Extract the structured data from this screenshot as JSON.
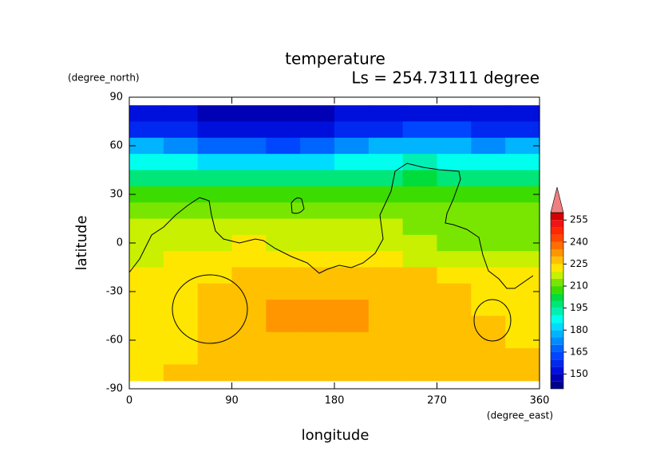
{
  "chart_data": {
    "type": "contour",
    "title": "temperature",
    "subtitle": "Ls = 254.73111 degree",
    "x_label": "longitude",
    "x_units": "(degree_east)",
    "y_label": "latitude",
    "y_units": "(degree_north)",
    "xlim": [
      0,
      360
    ],
    "xticks": [
      0,
      90,
      180,
      270,
      360
    ],
    "ylim": [
      -90,
      90
    ],
    "yticks": [
      90,
      60,
      30,
      0,
      -30,
      -60,
      -90
    ],
    "x": [
      15,
      45,
      75,
      105,
      135,
      165,
      195,
      225,
      255,
      285,
      315,
      345
    ],
    "y": [
      80,
      70,
      60,
      50,
      40,
      30,
      20,
      10,
      0,
      -10,
      -20,
      -30,
      -40,
      -50,
      -60,
      -70,
      -80
    ],
    "z": [
      [
        150,
        150,
        149,
        148,
        148,
        149,
        150,
        150,
        151,
        151,
        150,
        150
      ],
      [
        158,
        156,
        154,
        152,
        151,
        152,
        155,
        158,
        160,
        160,
        159,
        158
      ],
      [
        175,
        172,
        168,
        165,
        164,
        166,
        170,
        175,
        178,
        176,
        174,
        175
      ],
      [
        188,
        186,
        184,
        182,
        182,
        184,
        186,
        188,
        190,
        189,
        188,
        188
      ],
      [
        198,
        197,
        196,
        195,
        195,
        196,
        197,
        198,
        200,
        199,
        198,
        198
      ],
      [
        206,
        206,
        205,
        205,
        206,
        206,
        206,
        207,
        207,
        206,
        206,
        206
      ],
      [
        212,
        213,
        212,
        212,
        212,
        213,
        213,
        213,
        212,
        211,
        211,
        211
      ],
      [
        216,
        218,
        217,
        217,
        217,
        217,
        217,
        216,
        213,
        212,
        212,
        213
      ],
      [
        218,
        219,
        219,
        220,
        219,
        218,
        218,
        217,
        215,
        213,
        213,
        214
      ],
      [
        219,
        222,
        223,
        223,
        222,
        221,
        222,
        221,
        219,
        218,
        217,
        218
      ],
      [
        220,
        223,
        224,
        226,
        226,
        226,
        226,
        226,
        225,
        223,
        222,
        222
      ],
      [
        222,
        224,
        226,
        227,
        228,
        228,
        228,
        228,
        227,
        226,
        224,
        223
      ],
      [
        223,
        224,
        226,
        228,
        232,
        233,
        232,
        229,
        227,
        226,
        224,
        223
      ],
      [
        223,
        224,
        227,
        229,
        233,
        234,
        230,
        229,
        227,
        226,
        225,
        224
      ],
      [
        222,
        223,
        226,
        228,
        228,
        229,
        229,
        228,
        227,
        226,
        225,
        224
      ],
      [
        221,
        222,
        225,
        227,
        227,
        227,
        227,
        226,
        226,
        225,
        226,
        226
      ],
      [
        224,
        225,
        226,
        227,
        227,
        227,
        227,
        226,
        227,
        227,
        227,
        227
      ]
    ],
    "levels": [
      140,
      145,
      150,
      155,
      160,
      165,
      170,
      175,
      180,
      185,
      190,
      195,
      200,
      205,
      210,
      215,
      220,
      225,
      230,
      235,
      240,
      245,
      250,
      255,
      260
    ],
    "colors": [
      "#00008c",
      "#0000b4",
      "#0010dc",
      "#0028f0",
      "#0046ff",
      "#0064ff",
      "#008cff",
      "#00b4ff",
      "#00dcff",
      "#00ffee",
      "#00f0b4",
      "#00e678",
      "#00dc3c",
      "#3cdc00",
      "#78e600",
      "#c8f000",
      "#ffe600",
      "#ffc000",
      "#ff9600",
      "#ff6e00",
      "#ff4600",
      "#ff2800",
      "#f01414",
      "#d20000"
    ],
    "overflow_color": "#f08080",
    "colorbar_ticks": [
      150,
      165,
      180,
      195,
      210,
      225,
      240,
      255
    ]
  }
}
